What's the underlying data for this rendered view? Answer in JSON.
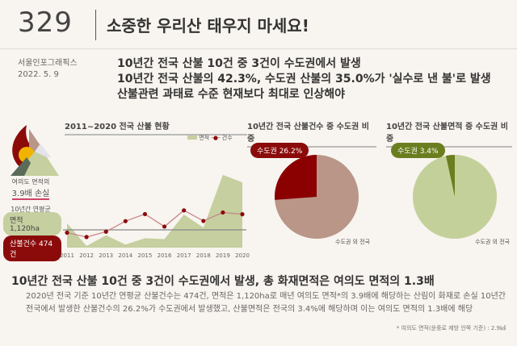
{
  "header": {
    "number": "329",
    "title": "소중한 우리산 태우지 마세요!"
  },
  "source": {
    "publisher": "서울인포그래픽스",
    "date": "2022. 5. 9"
  },
  "headlines": [
    "10년간 전국 산불 10건 중 3건이 수도권에서 발생",
    "10년간 전국 산불의 42.3%, 수도권 산불의 35.0%가 '실수로 낸 불'로 발생",
    "산불관련 과태료 수준 현재보다 최대로 인상해야"
  ],
  "left_panel": {
    "loss_line1": "여의도 면적의",
    "loss_value": "3.9배 손실",
    "avg_label": "10년간 연평균",
    "area_pill": "면적 1,120ha",
    "count_pill": "산불건수 474건"
  },
  "colors": {
    "area": "#c5cf9f",
    "count": "#8b0b0b",
    "line": "#c9878a",
    "pie1_main": "#b99688",
    "pie1_slice": "#8b0000",
    "pie2_main": "#c4d09a",
    "pie2_slice": "#6b7e1f"
  },
  "chart_data": [
    {
      "type": "area+line",
      "title": "2011~2020 전국 산불 현황",
      "categories": [
        "2011",
        "2012",
        "2013",
        "2014",
        "2015",
        "2016",
        "2017",
        "2018",
        "2019",
        "2020"
      ],
      "series": [
        {
          "name": "면적",
          "type": "area",
          "values": [
            1090,
            72,
            552,
            137,
            418,
            378,
            1480,
            894,
            3255,
            2920
          ]
        },
        {
          "name": "건수",
          "type": "line",
          "values": [
            277,
            197,
            296,
            492,
            623,
            391,
            692,
            496,
            653,
            620
          ]
        }
      ],
      "legend": "top-right"
    },
    {
      "type": "pie",
      "title": "10년간 전국 산불건수 중 수도권 비중",
      "slices": [
        {
          "label": "수도권 26.2%",
          "value": 26.2
        },
        {
          "label": "수도권 외 전국",
          "value": 73.8
        }
      ]
    },
    {
      "type": "pie",
      "title": "10년간 전국 산불면적 중 수도권 비중",
      "slices": [
        {
          "label": "수도권 3.4%",
          "value": 3.4
        },
        {
          "label": "수도권 외 전국",
          "value": 96.6
        }
      ]
    }
  ],
  "body": {
    "heading": "10년간 전국 산불 10건 중 3건이 수도권에서 발생, 총 화재면적은 여의도 면적의 1.3배",
    "paragraph": "2020년 전국 기준 10년간 연평균 산불건수는 474건, 면적은 1,120ha로 매년 여의도 면적*의 3.9배에 해당하는 산림이 화재로 손실 10년간 전국에서 발생한 산불건수의 26.2%가 수도권에서 발생했고, 산불면적은 전국의 3.4%에 해당하며 이는 여의도 면적의 1.3배에 해당",
    "note": "* 여의도 면적(윤중로 제방 안쪽 기준) : 2.9㎢"
  }
}
